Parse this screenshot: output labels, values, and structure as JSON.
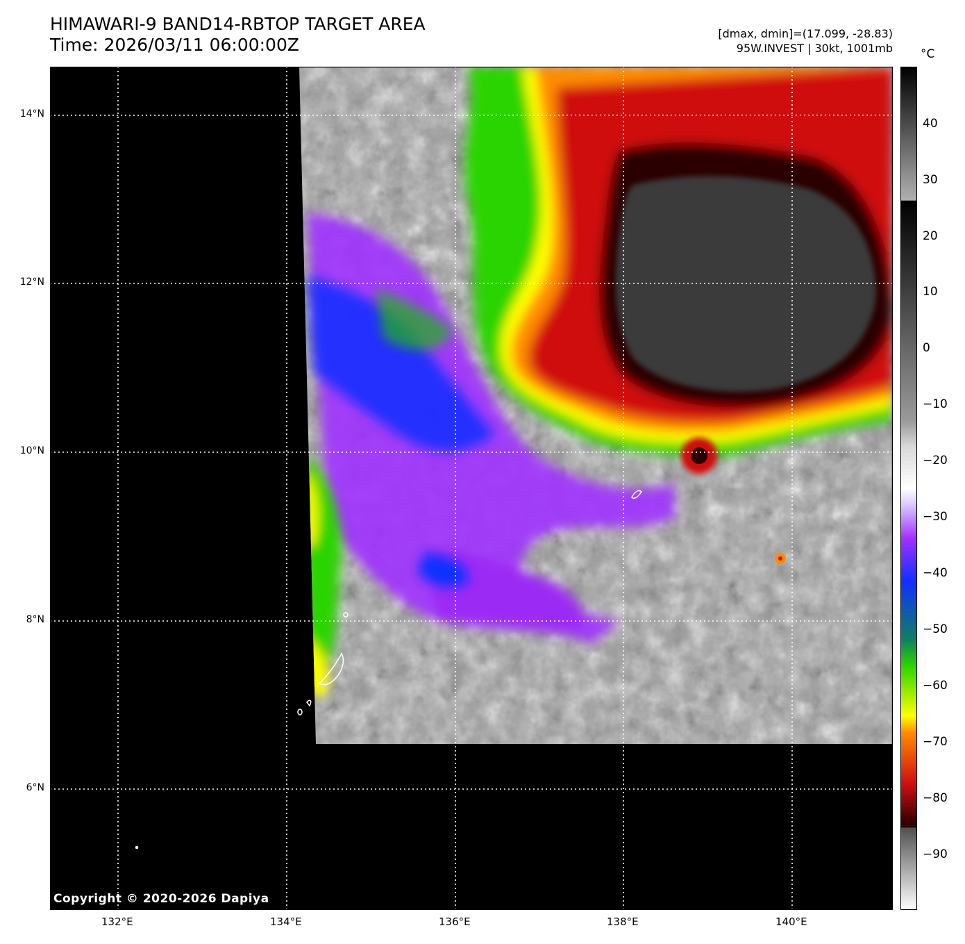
{
  "header": {
    "title": "HIMAWARI-9 BAND14-RBTOP TARGET AREA",
    "time": "Time: 2026/03/11 06:00:00Z",
    "dminmax": "[dmax, dmin]=(17.099, -28.83)",
    "storm": "95W.INVEST | 30kt, 1001mb"
  },
  "map": {
    "lat_ticks": [
      "14°N",
      "12°N",
      "10°N",
      "8°N",
      "6°N"
    ],
    "lon_ticks": [
      "132°E",
      "134°E",
      "136°E",
      "138°E",
      "140°E"
    ],
    "copyright": "Copyright © 2020-2026 Dapiya"
  },
  "colorbar": {
    "unit": "°C",
    "ticks": [
      "40",
      "30",
      "20",
      "10",
      "0",
      "−10",
      "−20",
      "−30",
      "−40",
      "−50",
      "−60",
      "−70",
      "−80",
      "−90"
    ],
    "colors": {
      "missing": "#000000",
      "cold_core": "#3a3a3a",
      "ring_dark": "#2a0000",
      "red": "#d01010",
      "orange": "#ff8c00",
      "yellow": "#ffff00",
      "green": "#2ad400",
      "blue": "#1030ff",
      "purple": "#a030ff",
      "light_gray": "#d8d8d8",
      "mid_gray": "#909090"
    }
  }
}
